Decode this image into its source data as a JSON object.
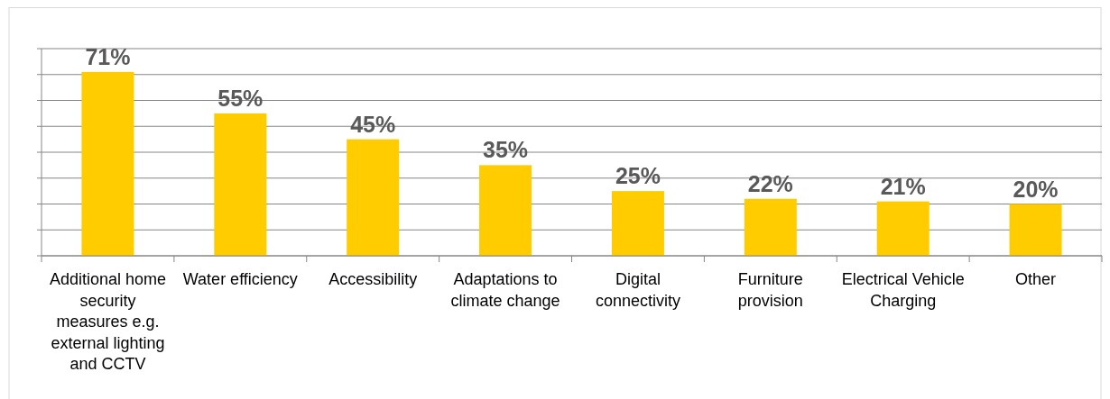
{
  "chart_data": {
    "type": "bar",
    "categories": [
      "Additional home security measures e.g. external lighting and CCTV",
      "Water efficiency",
      "Accessibility",
      "Adaptations to climate change",
      "Digital connectivity",
      "Furniture provision",
      "Electrical Vehicle Charging",
      "Other"
    ],
    "values": [
      71,
      55,
      45,
      35,
      25,
      22,
      21,
      20
    ],
    "value_labels": [
      "71%",
      "55%",
      "45%",
      "35%",
      "25%",
      "22%",
      "21%",
      "20%"
    ],
    "color": "#ffcc00",
    "ylim": [
      0,
      80
    ],
    "yticks": [
      {
        "value": 0,
        "label": null
      },
      {
        "value": 10,
        "label": null
      },
      {
        "value": 20,
        "label": null
      },
      {
        "value": 30,
        "label": null
      },
      {
        "value": 40,
        "label": null
      },
      {
        "value": 50,
        "label": null
      },
      {
        "value": 60,
        "label": null
      },
      {
        "value": 70,
        "label": null
      },
      {
        "value": 80,
        "label": null
      }
    ],
    "grid": "y",
    "tick_labels": "x"
  }
}
